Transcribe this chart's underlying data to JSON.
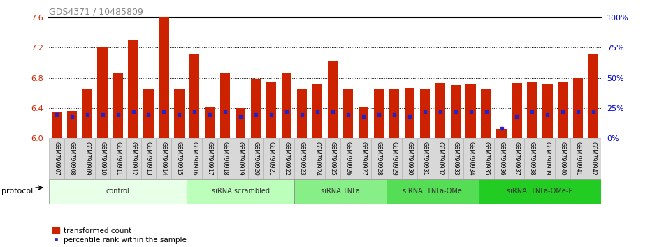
{
  "title": "GDS4371 / 10485809",
  "samples": [
    "GSM790907",
    "GSM790908",
    "GSM790909",
    "GSM790910",
    "GSM790911",
    "GSM790912",
    "GSM790913",
    "GSM790914",
    "GSM790915",
    "GSM790916",
    "GSM790917",
    "GSM790918",
    "GSM790919",
    "GSM790920",
    "GSM790921",
    "GSM790922",
    "GSM790923",
    "GSM790924",
    "GSM790925",
    "GSM790926",
    "GSM790927",
    "GSM790928",
    "GSM790929",
    "GSM790930",
    "GSM790931",
    "GSM790932",
    "GSM790933",
    "GSM790934",
    "GSM790935",
    "GSM790936",
    "GSM790937",
    "GSM790938",
    "GSM790939",
    "GSM790940",
    "GSM790941",
    "GSM790942"
  ],
  "transformed_count": [
    6.34,
    6.36,
    6.65,
    7.2,
    6.87,
    7.3,
    6.65,
    7.595,
    6.65,
    7.12,
    6.42,
    6.87,
    6.4,
    6.79,
    6.74,
    6.87,
    6.65,
    6.72,
    7.03,
    6.65,
    6.42,
    6.65,
    6.65,
    6.67,
    6.66,
    6.73,
    6.7,
    6.72,
    6.65,
    6.12,
    6.73,
    6.74,
    6.71,
    6.75,
    6.8,
    7.12
  ],
  "percentile_rank": [
    20,
    18,
    20,
    20,
    20,
    22,
    20,
    22,
    20,
    22,
    20,
    22,
    18,
    20,
    20,
    22,
    20,
    22,
    22,
    20,
    18,
    20,
    20,
    18,
    22,
    22,
    22,
    22,
    22,
    8,
    18,
    22,
    20,
    22,
    22,
    22
  ],
  "ylim_left": [
    6.0,
    7.6
  ],
  "ylim_right": [
    0,
    100
  ],
  "yticks_left": [
    6.0,
    6.4,
    6.8,
    7.2,
    7.6
  ],
  "yticks_right": [
    0,
    25,
    50,
    75,
    100
  ],
  "bar_color": "#cc2200",
  "marker_color": "#2222cc",
  "bar_base": 6.0,
  "groups": [
    {
      "label": "control",
      "start": 0,
      "end": 8,
      "color": "#e8ffe8"
    },
    {
      "label": "siRNA scrambled",
      "start": 9,
      "end": 15,
      "color": "#bbffbb"
    },
    {
      "label": "siRNA TNFa",
      "start": 16,
      "end": 21,
      "color": "#88ee88"
    },
    {
      "label": "siRNA  TNFa-OMe",
      "start": 22,
      "end": 27,
      "color": "#55dd55"
    },
    {
      "label": "siRNA  TNFa-OMe-P",
      "start": 28,
      "end": 35,
      "color": "#22cc22"
    }
  ],
  "xlabel": "protocol",
  "legend_red": "transformed count",
  "legend_blue": "percentile rank within the sample",
  "title_color": "#888888",
  "left_axis_color": "#cc2200",
  "right_axis_color": "#0000cc"
}
